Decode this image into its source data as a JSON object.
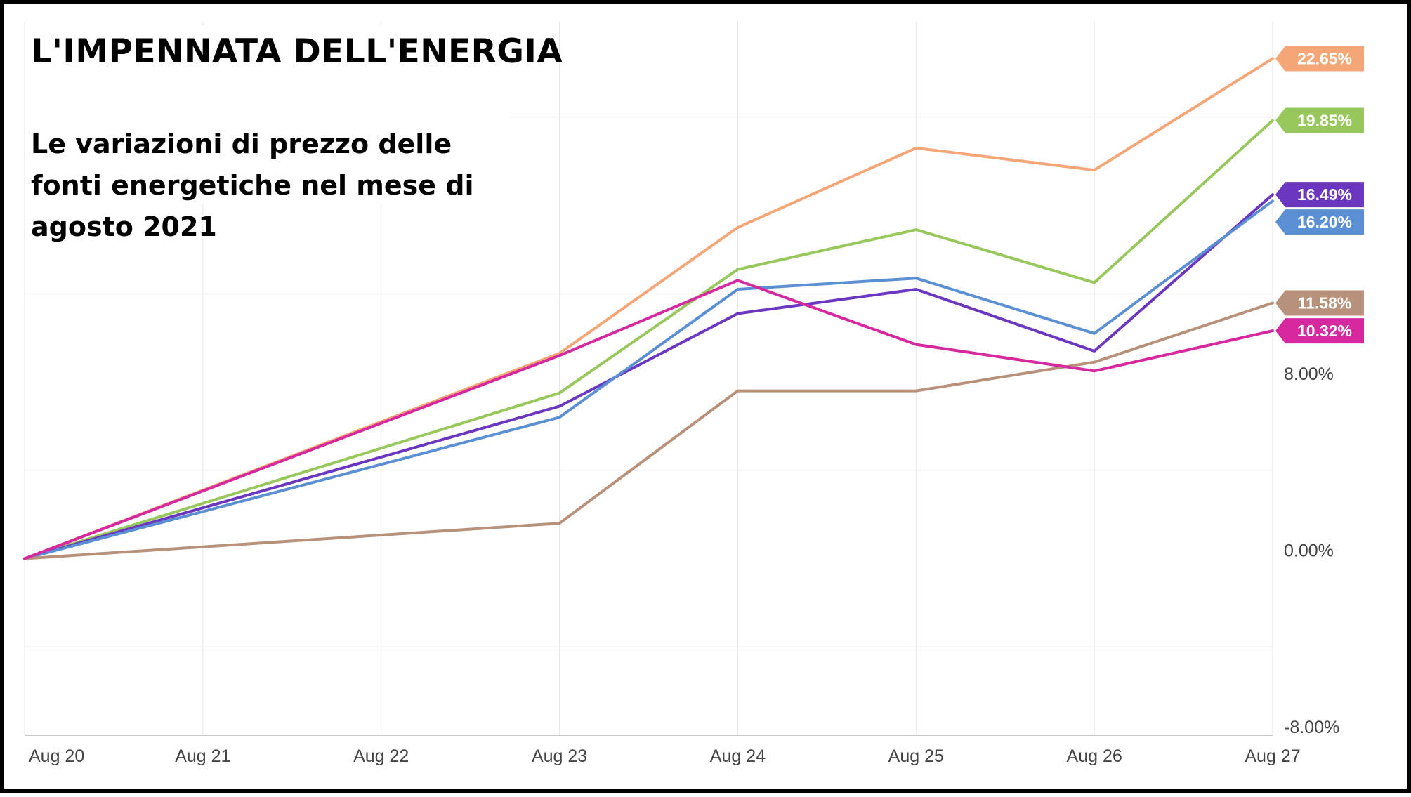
{
  "title": "L'IMPENNATA DELL'ENERGIA",
  "subtitle": "Le variazioni di prezzo delle fonti energetiche nel mese di agosto 2021",
  "chart_data": {
    "type": "line",
    "title": "L'IMPENNATA DELL'ENERGIA",
    "subtitle": "Le variazioni di prezzo delle fonti energetiche nel mese di agosto 2021",
    "categories": [
      "Aug 20",
      "Aug 21",
      "Aug 22",
      "Aug 23",
      "Aug 24",
      "Aug 25",
      "Aug 26",
      "Aug 27"
    ],
    "ylim": [
      -8,
      24
    ],
    "ytick_values": [
      -8,
      0,
      8
    ],
    "ytick_labels": [
      "-8.00%",
      "0.00%",
      "8.00%"
    ],
    "grid": true,
    "series": [
      {
        "color": "#f5a677",
        "end_label": "22.65%",
        "points": [
          [
            0,
            0
          ],
          [
            3,
            9.3
          ],
          [
            4,
            15.0
          ],
          [
            5,
            18.6
          ],
          [
            6,
            17.6
          ],
          [
            7,
            22.65
          ]
        ]
      },
      {
        "color": "#98c85c",
        "end_label": "19.85%",
        "points": [
          [
            0,
            0
          ],
          [
            3,
            7.5
          ],
          [
            4,
            13.1
          ],
          [
            5,
            14.9
          ],
          [
            6,
            12.5
          ],
          [
            7,
            19.85
          ]
        ]
      },
      {
        "color": "#6c37c0",
        "end_label": "16.49%",
        "points": [
          [
            0,
            0
          ],
          [
            3,
            6.9
          ],
          [
            4,
            11.1
          ],
          [
            5,
            12.2
          ],
          [
            6,
            9.4
          ],
          [
            7,
            16.49
          ]
        ]
      },
      {
        "color": "#5b8fd4",
        "end_label": "16.20%",
        "points": [
          [
            0,
            0
          ],
          [
            3,
            6.4
          ],
          [
            4,
            12.2
          ],
          [
            5,
            12.7
          ],
          [
            6,
            10.2
          ],
          [
            7,
            16.2
          ]
        ]
      },
      {
        "color": "#b8917a",
        "end_label": "11.58%",
        "points": [
          [
            0,
            0
          ],
          [
            3,
            1.6
          ],
          [
            4,
            7.6
          ],
          [
            5,
            7.6
          ],
          [
            6,
            8.9
          ],
          [
            7,
            11.58
          ]
        ]
      },
      {
        "color": "#d6289f",
        "end_label": "10.32%",
        "points": [
          [
            0,
            0
          ],
          [
            3,
            9.2
          ],
          [
            4,
            12.6
          ],
          [
            5,
            9.7
          ],
          [
            6,
            8.5
          ],
          [
            7,
            10.32
          ]
        ]
      }
    ]
  }
}
